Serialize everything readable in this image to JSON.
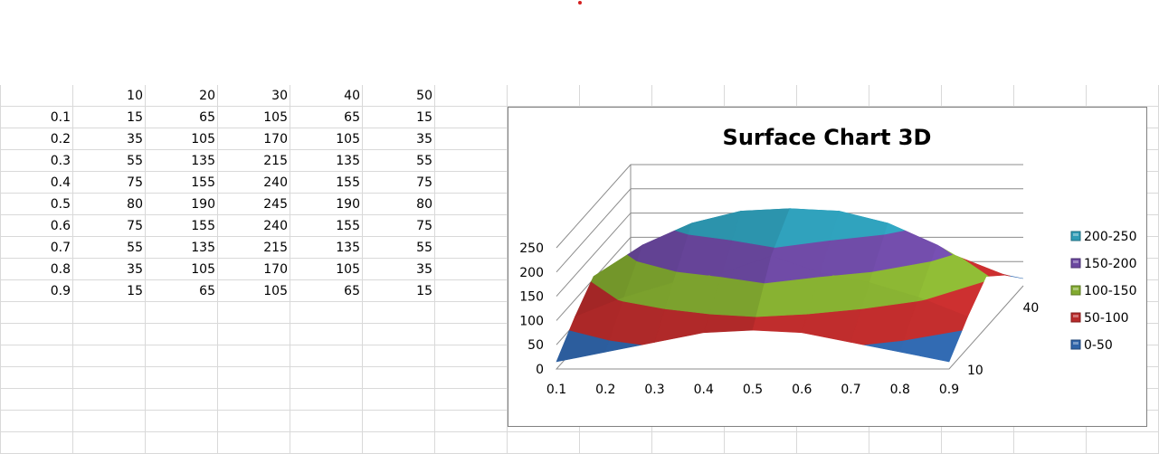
{
  "sheet": {
    "col_headers": [
      "10",
      "20",
      "30",
      "40",
      "50"
    ],
    "rows": [
      {
        "label": "0.1",
        "values": [
          "15",
          "65",
          "105",
          "65",
          "15"
        ]
      },
      {
        "label": "0.2",
        "values": [
          "35",
          "105",
          "170",
          "105",
          "35"
        ]
      },
      {
        "label": "0.3",
        "values": [
          "55",
          "135",
          "215",
          "135",
          "55"
        ]
      },
      {
        "label": "0.4",
        "values": [
          "75",
          "155",
          "240",
          "155",
          "75"
        ]
      },
      {
        "label": "0.5",
        "values": [
          "80",
          "190",
          "245",
          "190",
          "80"
        ]
      },
      {
        "label": "0.6",
        "values": [
          "75",
          "155",
          "240",
          "155",
          "75"
        ]
      },
      {
        "label": "0.7",
        "values": [
          "55",
          "135",
          "215",
          "135",
          "55"
        ]
      },
      {
        "label": "0.8",
        "values": [
          "35",
          "105",
          "170",
          "105",
          "35"
        ]
      },
      {
        "label": "0.9",
        "values": [
          "15",
          "65",
          "105",
          "65",
          "15"
        ]
      }
    ]
  },
  "chart_data": {
    "type": "surface",
    "title": "Surface Chart 3D",
    "x_categories": [
      "0.1",
      "0.2",
      "0.3",
      "0.4",
      "0.5",
      "0.6",
      "0.7",
      "0.8",
      "0.9"
    ],
    "depth_series": [
      "10",
      "20",
      "30",
      "40",
      "50"
    ],
    "depth_tick_labels": [
      "10",
      "40"
    ],
    "values": [
      [
        15,
        65,
        105,
        65,
        15
      ],
      [
        35,
        105,
        170,
        105,
        35
      ],
      [
        55,
        135,
        215,
        135,
        55
      ],
      [
        75,
        155,
        240,
        155,
        75
      ],
      [
        80,
        190,
        245,
        190,
        80
      ],
      [
        75,
        155,
        240,
        155,
        75
      ],
      [
        55,
        135,
        215,
        135,
        55
      ],
      [
        35,
        105,
        170,
        105,
        35
      ],
      [
        15,
        65,
        105,
        65,
        15
      ]
    ],
    "z_ticks": [
      "0",
      "50",
      "100",
      "150",
      "200",
      "250"
    ],
    "zlim": [
      0,
      250
    ],
    "grid": true,
    "legend_position": "right",
    "bands": [
      {
        "label": "200-250",
        "min": 200,
        "max": 250,
        "color": "#2e9bb5"
      },
      {
        "label": "150-200",
        "min": 150,
        "max": 200,
        "color": "#6b48a0"
      },
      {
        "label": "100-150",
        "min": 100,
        "max": 150,
        "color": "#82aa30"
      },
      {
        "label": "50-100",
        "min": 50,
        "max": 100,
        "color": "#b82b2b"
      },
      {
        "label": "0-50",
        "min": 0,
        "max": 50,
        "color": "#2f64a8"
      }
    ]
  }
}
